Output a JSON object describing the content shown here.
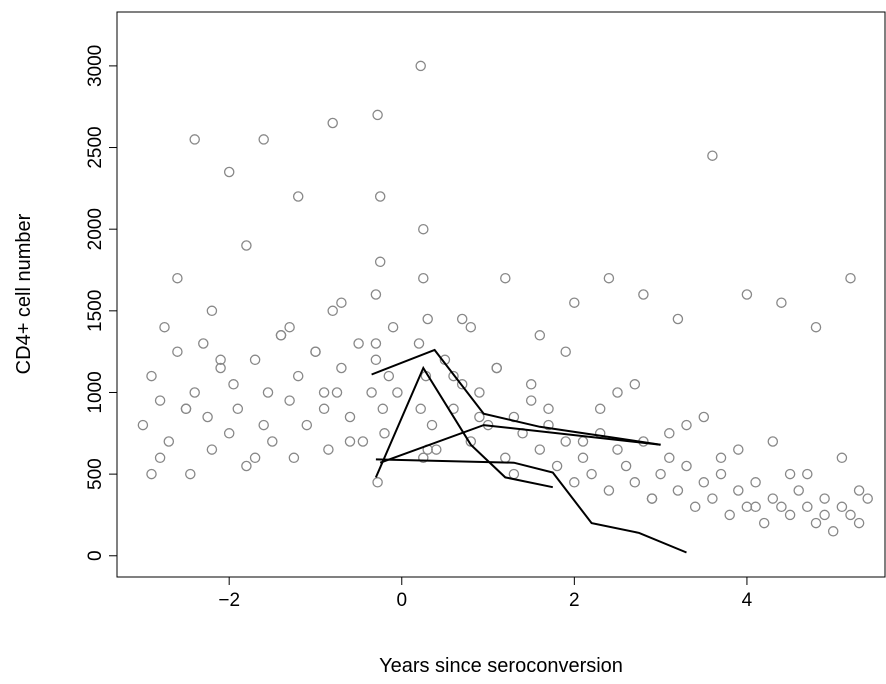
{
  "chart_data": {
    "type": "scatter",
    "title": "",
    "xlabel": "Years since seroconversion",
    "ylabel": "CD4+ cell number",
    "xlim": [
      -3.3,
      5.6
    ],
    "ylim": [
      -130,
      3330
    ],
    "grid": false,
    "xticks": [
      -2,
      0,
      2,
      4
    ],
    "xtick_labels": [
      "−2",
      "0",
      "2",
      "4"
    ],
    "yticks": [
      0,
      500,
      1000,
      1500,
      2000,
      2500,
      3000
    ],
    "ytick_labels": [
      "0",
      "500",
      "1000",
      "1500",
      "2000",
      "2500",
      "3000"
    ],
    "point_color": "#888888",
    "line_color": "#000000",
    "scatter_series": {
      "name": "",
      "marker": "open-circle",
      "x": [
        -3.0,
        -2.9,
        -2.8,
        -2.8,
        -2.75,
        -2.7,
        -2.6,
        -2.5,
        -2.45,
        -2.4,
        -2.3,
        -2.25,
        -2.2,
        -2.1,
        -2.0,
        -1.95,
        -1.9,
        -1.8,
        -1.7,
        -1.6,
        -1.55,
        -1.5,
        -1.4,
        -1.3,
        -1.25,
        -1.2,
        -1.1,
        -1.0,
        -0.9,
        -0.85,
        -0.8,
        -0.75,
        -0.7,
        -0.6,
        -0.5,
        -0.45,
        -0.35,
        -0.3,
        -0.3,
        -0.28,
        -0.25,
        -0.22,
        -0.2,
        -0.15,
        -0.1,
        -0.05,
        0.2,
        0.22,
        0.25,
        0.25,
        0.28,
        0.3,
        0.35,
        0.4,
        0.5,
        0.6,
        0.7,
        0.8,
        0.9,
        1.0,
        1.1,
        1.2,
        1.3,
        1.4,
        1.5,
        1.6,
        1.7,
        1.8,
        1.9,
        2.0,
        2.1,
        2.2,
        2.3,
        2.4,
        2.5,
        2.6,
        2.7,
        2.8,
        2.9,
        3.0,
        3.1,
        3.2,
        3.3,
        3.4,
        3.5,
        3.6,
        3.7,
        3.8,
        3.9,
        4.0,
        4.1,
        4.2,
        4.3,
        4.4,
        4.5,
        4.6,
        4.7,
        4.8,
        4.9,
        5.0,
        5.1,
        5.2,
        5.3,
        5.4,
        -2.9,
        -2.5,
        -2.1,
        -1.7,
        -1.3,
        -0.9,
        -0.6,
        -0.3,
        0.3,
        0.6,
        0.9,
        1.3,
        1.7,
        2.1,
        2.5,
        2.9,
        3.3,
        3.7,
        4.1,
        4.5,
        4.9,
        5.3,
        -2.6,
        -2.2,
        -1.8,
        -1.4,
        -1.0,
        -0.7,
        -0.25,
        0.25,
        0.7,
        1.1,
        1.5,
        1.9,
        2.3,
        2.7,
        3.1,
        3.5,
        3.9,
        4.3,
        4.7,
        5.1,
        -2.4,
        -2.0,
        -1.6,
        -1.2,
        -0.8,
        -0.28,
        0.22,
        0.8,
        1.2,
        1.6,
        2.0,
        2.4,
        2.8,
        3.2,
        3.6,
        4.0,
        4.4,
        4.8,
        5.2
      ],
      "y": [
        800,
        1100,
        950,
        600,
        1400,
        700,
        1250,
        900,
        500,
        1000,
        1300,
        850,
        650,
        1150,
        750,
        1050,
        900,
        550,
        1200,
        800,
        1000,
        700,
        1350,
        950,
        600,
        1100,
        800,
        1250,
        900,
        650,
        1500,
        1000,
        1150,
        850,
        1300,
        700,
        1000,
        1600,
        1200,
        450,
        1800,
        900,
        750,
        1100,
        1400,
        1000,
        1300,
        900,
        600,
        2000,
        1100,
        1450,
        800,
        650,
        1200,
        900,
        1050,
        700,
        1000,
        800,
        1150,
        600,
        850,
        750,
        950,
        650,
        800,
        550,
        700,
        450,
        600,
        500,
        750,
        400,
        650,
        550,
        450,
        700,
        350,
        500,
        600,
        400,
        550,
        300,
        450,
        350,
        500,
        250,
        400,
        300,
        450,
        200,
        350,
        300,
        250,
        400,
        300,
        200,
        350,
        150,
        300,
        250,
        200,
        350,
        500,
        900,
        1200,
        600,
        1400,
        1000,
        700,
        1300,
        650,
        1100,
        850,
        500,
        900,
        700,
        1000,
        350,
        800,
        600,
        300,
        500,
        250,
        400,
        1700,
        1500,
        1900,
        1350,
        1250,
        1550,
        2200,
        1700,
        1450,
        1150,
        1050,
        1250,
        900,
        1050,
        750,
        850,
        650,
        700,
        500,
        600,
        2550,
        2350,
        2550,
        2200,
        2650,
        2700,
        3000,
        1400,
        1700,
        1350,
        1550,
        1700,
        1600,
        1450,
        2450,
        1600,
        1550,
        1400,
        1700
      ]
    },
    "trajectories": [
      {
        "name": "",
        "x": [
          -0.35,
          0.38,
          0.95,
          1.6,
          2.5,
          3.0
        ],
        "y": [
          1110,
          1260,
          870,
          790,
          720,
          680
        ]
      },
      {
        "name": "",
        "x": [
          -0.3,
          0.25,
          0.8,
          1.2,
          1.75
        ],
        "y": [
          480,
          1150,
          680,
          480,
          420
        ]
      },
      {
        "name": "",
        "x": [
          -0.25,
          0.95,
          3.0
        ],
        "y": [
          570,
          800,
          680
        ]
      },
      {
        "name": "",
        "x": [
          -0.3,
          1.3,
          1.75,
          2.2,
          2.75,
          3.3
        ],
        "y": [
          590,
          570,
          510,
          200,
          140,
          20
        ]
      }
    ]
  }
}
